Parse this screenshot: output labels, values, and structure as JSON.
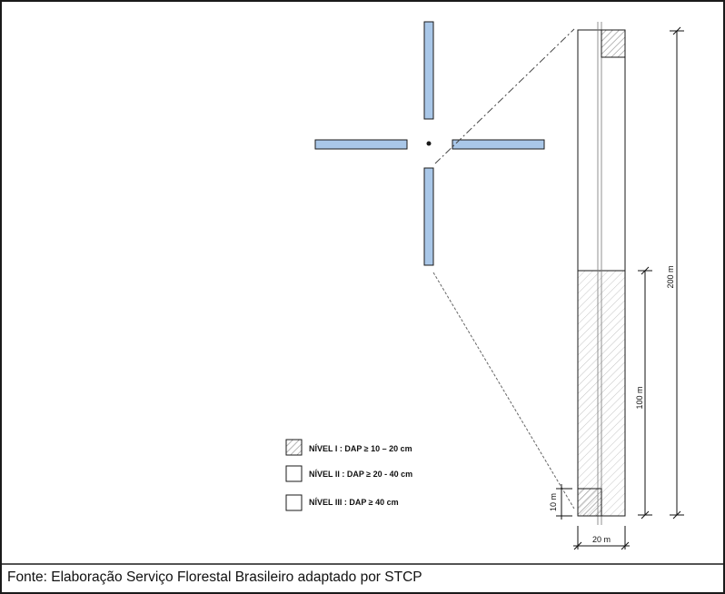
{
  "legend": {
    "items": [
      {
        "label": "NÍVEL I : DAP ≥ 10 – 20 cm",
        "pattern": "hatched"
      },
      {
        "label": "NÍVEL II : DAP ≥ 20 - 40 cm",
        "pattern": "empty"
      },
      {
        "label": "NÍVEL III : DAP ≥ 40 cm",
        "pattern": "empty"
      }
    ]
  },
  "dimensions": {
    "total_length": "200 m",
    "half_length": "100 m",
    "subplot_length": "10 m",
    "width": "20 m"
  },
  "caption": "Fonte: Elaboração Serviço Florestal Brasileiro  adaptado por STCP",
  "colors": {
    "arm_fill": "#a9c7e8",
    "arm_stroke": "#1a1a1a",
    "hatch": "#9a9a9a",
    "frame": "#1a1a1a"
  }
}
